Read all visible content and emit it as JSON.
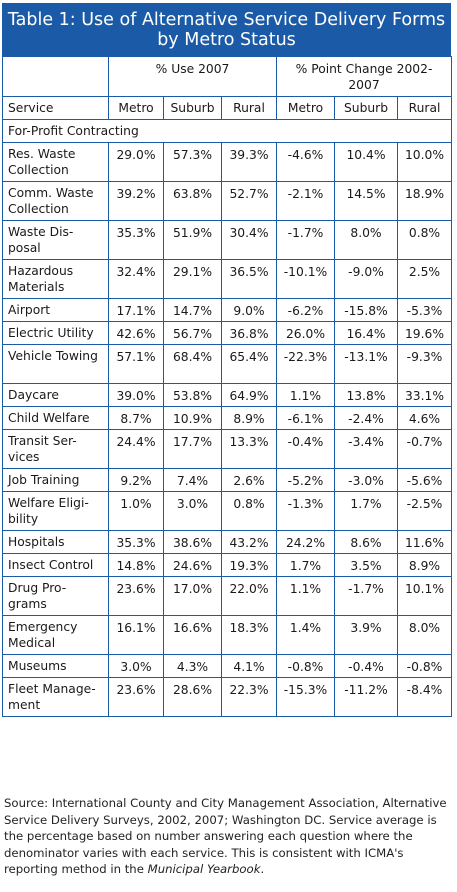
{
  "table": {
    "title_line1": "Table 1: Use of Alternative Service Delivery Forms",
    "title_line2": "by Metro Status",
    "group_use": "% Use 2007",
    "group_change": "% Point Change 2002-2007",
    "columns": [
      "Service",
      "Metro",
      "Suburb",
      "Rural",
      "Metro",
      "Suburb",
      "Rural"
    ],
    "section": "For-Profit Contracting",
    "rows": [
      {
        "service": "Res. Waste Collection",
        "use": [
          "29.0%",
          "57.3%",
          "39.3%"
        ],
        "change": [
          "-4.6%",
          "10.4%",
          "10.0%"
        ]
      },
      {
        "service": "Comm. Waste Collection",
        "use": [
          "39.2%",
          "63.8%",
          "52.7%"
        ],
        "change": [
          "-2.1%",
          "14.5%",
          "18.9%"
        ]
      },
      {
        "service": "Waste Dis- posal",
        "use": [
          "35.3%",
          "51.9%",
          "30.4%"
        ],
        "change": [
          "-1.7%",
          "8.0%",
          "0.8%"
        ]
      },
      {
        "service": "Hazardous Materials",
        "use": [
          "32.4%",
          "29.1%",
          "36.5%"
        ],
        "change": [
          "-10.1%",
          "-9.0%",
          "2.5%"
        ]
      },
      {
        "service": "Airport",
        "use": [
          "17.1%",
          "14.7%",
          "9.0%"
        ],
        "change": [
          "-6.2%",
          "-15.8%",
          "-5.3%"
        ]
      },
      {
        "service": "Electric Utility",
        "use": [
          "42.6%",
          "56.7%",
          "36.8%"
        ],
        "change": [
          "26.0%",
          "16.4%",
          "19.6%"
        ]
      },
      {
        "service": "Vehicle Towing",
        "use": [
          "57.1%",
          "68.4%",
          "65.4%"
        ],
        "change": [
          "-22.3%",
          "-13.1%",
          "-9.3%"
        ]
      },
      {
        "service": "Daycare",
        "use": [
          "39.0%",
          "53.8%",
          "64.9%"
        ],
        "change": [
          "1.1%",
          "13.8%",
          "33.1%"
        ]
      },
      {
        "service": "Child Welfare",
        "use": [
          "8.7%",
          "10.9%",
          "8.9%"
        ],
        "change": [
          "-6.1%",
          "-2.4%",
          "4.6%"
        ]
      },
      {
        "service": "Transit Ser- vices",
        "use": [
          "24.4%",
          "17.7%",
          "13.3%"
        ],
        "change": [
          "-0.4%",
          "-3.4%",
          "-0.7%"
        ]
      },
      {
        "service": "Job Training",
        "use": [
          "9.2%",
          "7.4%",
          "2.6%"
        ],
        "change": [
          "-5.2%",
          "-3.0%",
          "-5.6%"
        ]
      },
      {
        "service": "Welfare Eligi- bility",
        "use": [
          "1.0%",
          "3.0%",
          "0.8%"
        ],
        "change": [
          "-1.3%",
          "1.7%",
          "-2.5%"
        ]
      },
      {
        "service": "Hospitals",
        "use": [
          "35.3%",
          "38.6%",
          "43.2%"
        ],
        "change": [
          "24.2%",
          "8.6%",
          "11.6%"
        ]
      },
      {
        "service": "Insect Control",
        "use": [
          "14.8%",
          "24.6%",
          "19.3%"
        ],
        "change": [
          "1.7%",
          "3.5%",
          "8.9%"
        ]
      },
      {
        "service": "Drug Pro- grams",
        "use": [
          "23.6%",
          "17.0%",
          "22.0%"
        ],
        "change": [
          "1.1%",
          "-1.7%",
          "10.1%"
        ]
      },
      {
        "service": "Emergency Medical",
        "use": [
          "16.1%",
          "16.6%",
          "18.3%"
        ],
        "change": [
          "1.4%",
          "3.9%",
          "8.0%"
        ]
      },
      {
        "service": "Museums",
        "use": [
          "3.0%",
          "4.3%",
          "4.1%"
        ],
        "change": [
          "-0.8%",
          "-0.4%",
          "-0.8%"
        ]
      },
      {
        "service": "Fleet Manage- ment",
        "use": [
          "23.6%",
          "28.6%",
          "22.3%"
        ],
        "change": [
          "-15.3%",
          "-11.2%",
          "-8.4%"
        ]
      }
    ]
  },
  "source": {
    "text_before": "Source: International County and City Management Association, Alternative Service Delivery Surveys, 2002, 2007; Washington DC. Service average is the percentage based on number answering each question where the denominator varies with each service. This is consistent with ICMA's reporting method in the ",
    "text_italic": "Municipal Yearbook",
    "text_after": "."
  },
  "colors": {
    "title_bg": "#1a5aa6",
    "rule": "#1a5aa6"
  }
}
